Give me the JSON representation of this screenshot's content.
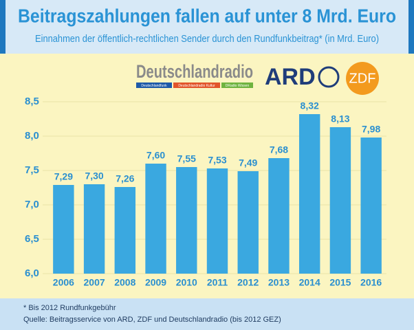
{
  "chart_data": {
    "type": "bar",
    "title": "Beitragszahlungen fallen auf unter 8 Mrd. Euro",
    "subtitle": "Einnahmen der öffentlich-rechtlichen Sender durch den Rundfunkbeitrag* (in Mrd. Euro)",
    "categories": [
      "2006",
      "2007",
      "2008",
      "2009",
      "2010",
      "2011",
      "2012",
      "2013",
      "2014",
      "2015",
      "2016"
    ],
    "values": [
      7.29,
      7.3,
      7.26,
      7.6,
      7.55,
      7.53,
      7.49,
      7.68,
      8.32,
      8.13,
      7.98
    ],
    "value_labels": [
      "7,29",
      "7,30",
      "7,26",
      "7,60",
      "7,55",
      "7,53",
      "7,49",
      "7,68",
      "8,32",
      "8,13",
      "7,98"
    ],
    "color": "#3aa8e0",
    "ylim": [
      6.0,
      8.5
    ],
    "yticks": [
      {
        "value": 6.0,
        "label": "6,0"
      },
      {
        "value": 6.5,
        "label": "6,5"
      },
      {
        "value": 7.0,
        "label": "7,0"
      },
      {
        "value": 7.5,
        "label": "7,5"
      },
      {
        "value": 8.0,
        "label": "8,0"
      },
      {
        "value": 8.5,
        "label": "8,5"
      }
    ],
    "grid": true,
    "logos": {
      "main": "Deutschlandradio",
      "sub": [
        "Deutschlandfunk",
        "Deutschlandradio Kultur",
        "DRadio Wissen"
      ],
      "ard": "ARD",
      "zdf": "ZDF"
    },
    "notes": [
      "* Bis 2012 Rundfunkgebühr",
      "Quelle: Beitragsservice von ARD, ZDF und Deutschlandradio (bis 2012 GEZ)"
    ]
  }
}
